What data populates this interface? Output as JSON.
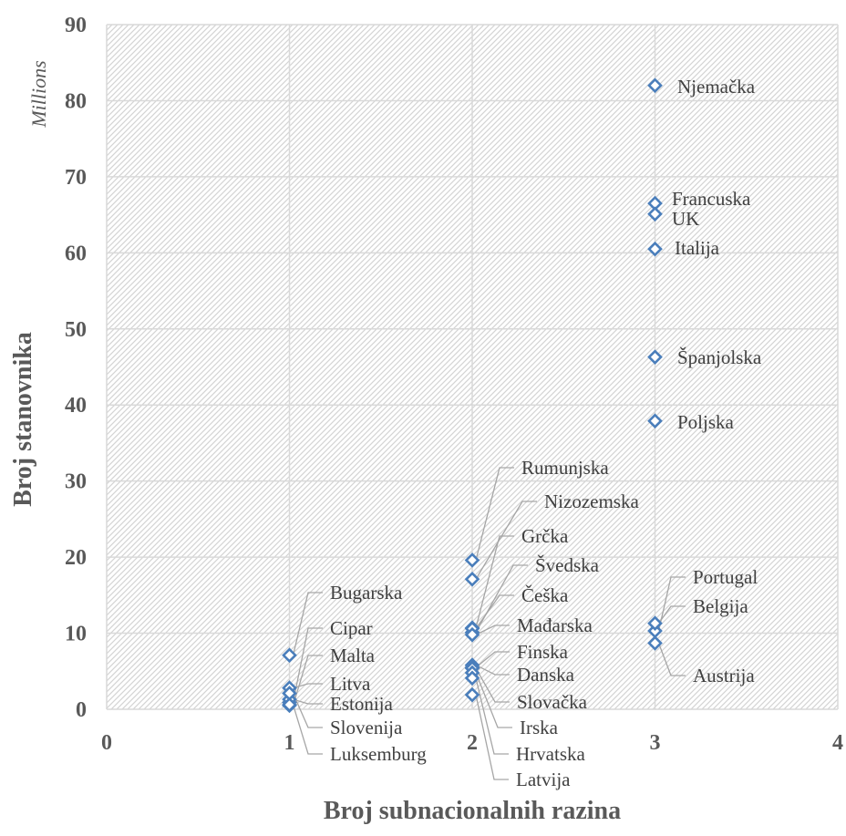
{
  "chart_data": {
    "type": "scatter",
    "title": "",
    "xlabel": "Broj subnacionalnih razina",
    "ylabel": "Broj stanovnika",
    "y_units": "Millions",
    "xlim": [
      0,
      4
    ],
    "ylim": [
      0,
      90
    ],
    "x_ticks": [
      "0",
      "1",
      "2",
      "3",
      "4"
    ],
    "y_ticks": [
      "0",
      "10",
      "20",
      "30",
      "40",
      "50",
      "60",
      "70",
      "80",
      "90"
    ],
    "grid": true,
    "marker": "diamond-open",
    "marker_color": "#4a7ebb",
    "points": [
      {
        "label": "Bugarska",
        "x": 1,
        "y": 7.1
      },
      {
        "label": "Cipar",
        "x": 1,
        "y": 0.9
      },
      {
        "label": "Malta",
        "x": 1,
        "y": 0.5
      },
      {
        "label": "Litva",
        "x": 1,
        "y": 2.8
      },
      {
        "label": "Estonija",
        "x": 1,
        "y": 1.3
      },
      {
        "label": "Slovenija",
        "x": 1,
        "y": 2.1
      },
      {
        "label": "Luksemburg",
        "x": 1,
        "y": 0.6
      },
      {
        "label": "Rumunjska",
        "x": 2,
        "y": 19.6
      },
      {
        "label": "Nizozemska",
        "x": 2,
        "y": 17.1
      },
      {
        "label": "Grčka",
        "x": 2,
        "y": 10.7
      },
      {
        "label": "Švedska",
        "x": 2,
        "y": 10.1
      },
      {
        "label": "Češka",
        "x": 2,
        "y": 10.6
      },
      {
        "label": "Mađarska",
        "x": 2,
        "y": 9.8
      },
      {
        "label": "Finska",
        "x": 2,
        "y": 5.5
      },
      {
        "label": "Danska",
        "x": 2,
        "y": 5.8
      },
      {
        "label": "Slovačka",
        "x": 2,
        "y": 5.4
      },
      {
        "label": "Irska",
        "x": 2,
        "y": 4.8
      },
      {
        "label": "Hrvatska",
        "x": 2,
        "y": 4.1
      },
      {
        "label": "Latvija",
        "x": 2,
        "y": 1.9
      },
      {
        "label": "Njemačka",
        "x": 3,
        "y": 82.0
      },
      {
        "label": "Francuska",
        "x": 3,
        "y": 66.5
      },
      {
        "label": "UK",
        "x": 3,
        "y": 65.1
      },
      {
        "label": "Italija",
        "x": 3,
        "y": 60.5
      },
      {
        "label": "Španjolska",
        "x": 3,
        "y": 46.3
      },
      {
        "label": "Poljska",
        "x": 3,
        "y": 37.9
      },
      {
        "label": "Portugal",
        "x": 3,
        "y": 10.3
      },
      {
        "label": "Belgija",
        "x": 3,
        "y": 11.3
      },
      {
        "label": "Austrija",
        "x": 3,
        "y": 8.7
      }
    ]
  }
}
